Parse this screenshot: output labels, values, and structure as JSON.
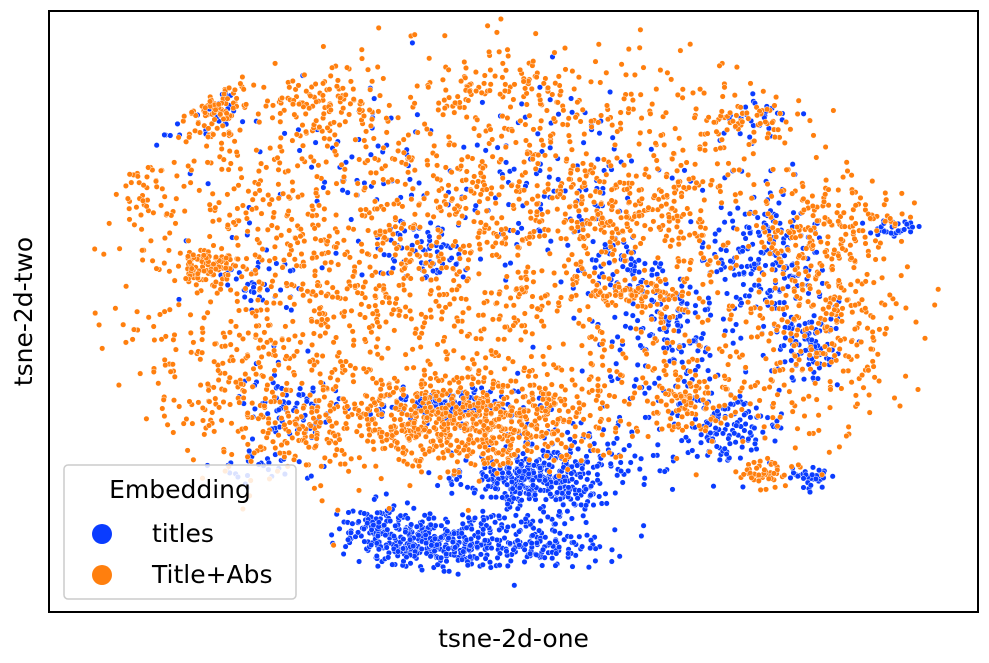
{
  "chart_data": {
    "type": "scatter",
    "xlabel": "tsne-2d-one",
    "ylabel": "tsne-2d-two",
    "xlim": [
      0,
      100
    ],
    "ylim": [
      0,
      100
    ],
    "grid": false,
    "ticks_visible": false,
    "legend": {
      "title": "Embedding",
      "placement": "lower-left"
    },
    "series": [
      {
        "name": "titles",
        "color": "#0a3cff",
        "clusters": [
          {
            "cx": 52,
            "cy": 22,
            "sx": 3.6,
            "sy": 2.3,
            "n": 300
          },
          {
            "cx": 41,
            "cy": 11.5,
            "sx": 3.6,
            "sy": 2.2,
            "n": 260
          },
          {
            "cx": 51,
            "cy": 12,
            "sx": 4.5,
            "sy": 2.3,
            "n": 220
          },
          {
            "cx": 35.5,
            "cy": 14,
            "sx": 2.2,
            "sy": 2.0,
            "n": 110
          },
          {
            "cx": 43,
            "cy": 34.5,
            "sx": 3.8,
            "sy": 1.2,
            "n": 140
          },
          {
            "cx": 77,
            "cy": 60,
            "sx": 3.0,
            "sy": 6.0,
            "n": 180
          },
          {
            "cx": 82,
            "cy": 45,
            "sx": 2.0,
            "sy": 4.0,
            "n": 90
          },
          {
            "cx": 73,
            "cy": 30,
            "sx": 3.0,
            "sy": 3.0,
            "n": 120
          },
          {
            "cx": 67,
            "cy": 45,
            "sx": 4.0,
            "sy": 6.0,
            "n": 160
          },
          {
            "cx": 57,
            "cy": 25,
            "sx": 6.0,
            "sy": 4.0,
            "n": 120
          },
          {
            "cx": 26,
            "cy": 34,
            "sx": 3.0,
            "sy": 4.0,
            "n": 70
          },
          {
            "cx": 22,
            "cy": 55,
            "sx": 2.5,
            "sy": 3.0,
            "n": 40
          },
          {
            "cx": 62,
            "cy": 57,
            "sx": 2.0,
            "sy": 2.5,
            "n": 50
          },
          {
            "cx": 82,
            "cy": 22,
            "sx": 1.5,
            "sy": 1.2,
            "n": 35
          },
          {
            "cx": 91,
            "cy": 64,
            "sx": 1.5,
            "sy": 1.0,
            "n": 35
          },
          {
            "cx": 76,
            "cy": 82,
            "sx": 2.0,
            "sy": 2.0,
            "n": 30
          },
          {
            "cx": 17,
            "cy": 84,
            "sx": 2.0,
            "sy": 2.0,
            "n": 35
          },
          {
            "cx": 13,
            "cy": 80,
            "sx": 1.0,
            "sy": 1.0,
            "n": 15
          },
          {
            "cx": 40,
            "cy": 60,
            "sx": 3.0,
            "sy": 3.0,
            "n": 60
          },
          {
            "cx": 55,
            "cy": 70,
            "sx": 6.0,
            "sy": 8.0,
            "n": 120
          },
          {
            "cx": 35,
            "cy": 72,
            "sx": 8.0,
            "sy": 8.0,
            "n": 80
          },
          {
            "cx": 24,
            "cy": 24,
            "sx": 3.0,
            "sy": 1.5,
            "n": 30
          }
        ]
      },
      {
        "name": "Title+Abs",
        "color": "#ff7f0e",
        "clusters": [
          {
            "cx": 45,
            "cy": 32,
            "sx": 7.0,
            "sy": 4.0,
            "n": 700
          },
          {
            "cx": 44,
            "cy": 60,
            "sx": 18.0,
            "sy": 14.0,
            "n": 1100
          },
          {
            "cx": 30,
            "cy": 60,
            "sx": 12.0,
            "sy": 18.0,
            "n": 450
          },
          {
            "cx": 17,
            "cy": 57,
            "sx": 1.6,
            "sy": 1.6,
            "n": 90
          },
          {
            "cx": 17,
            "cy": 84,
            "sx": 2.5,
            "sy": 2.5,
            "n": 130
          },
          {
            "cx": 30,
            "cy": 85,
            "sx": 3.0,
            "sy": 2.5,
            "n": 70
          },
          {
            "cx": 48,
            "cy": 87,
            "sx": 4.0,
            "sy": 2.0,
            "n": 70
          },
          {
            "cx": 75,
            "cy": 82,
            "sx": 3.0,
            "sy": 2.0,
            "n": 60
          },
          {
            "cx": 84,
            "cy": 64,
            "sx": 4.0,
            "sy": 4.0,
            "n": 160
          },
          {
            "cx": 84,
            "cy": 48,
            "sx": 3.5,
            "sy": 6.0,
            "n": 140
          },
          {
            "cx": 63,
            "cy": 53,
            "sx": 2.5,
            "sy": 1.2,
            "n": 70
          },
          {
            "cx": 69,
            "cy": 35,
            "sx": 3.0,
            "sy": 3.0,
            "n": 90
          },
          {
            "cx": 77,
            "cy": 23,
            "sx": 1.5,
            "sy": 1.2,
            "n": 45
          },
          {
            "cx": 27,
            "cy": 30,
            "sx": 4.0,
            "sy": 3.0,
            "n": 100
          },
          {
            "cx": 19,
            "cy": 38,
            "sx": 4.0,
            "sy": 7.0,
            "n": 120
          },
          {
            "cx": 62,
            "cy": 66,
            "sx": 5.0,
            "sy": 3.0,
            "n": 130
          },
          {
            "cx": 77,
            "cy": 45,
            "sx": 10.0,
            "sy": 12.0,
            "n": 260
          },
          {
            "cx": 60,
            "cy": 80,
            "sx": 12.0,
            "sy": 8.0,
            "n": 220
          },
          {
            "cx": 10,
            "cy": 70,
            "sx": 2.5,
            "sy": 3.0,
            "n": 40
          }
        ]
      }
    ]
  }
}
